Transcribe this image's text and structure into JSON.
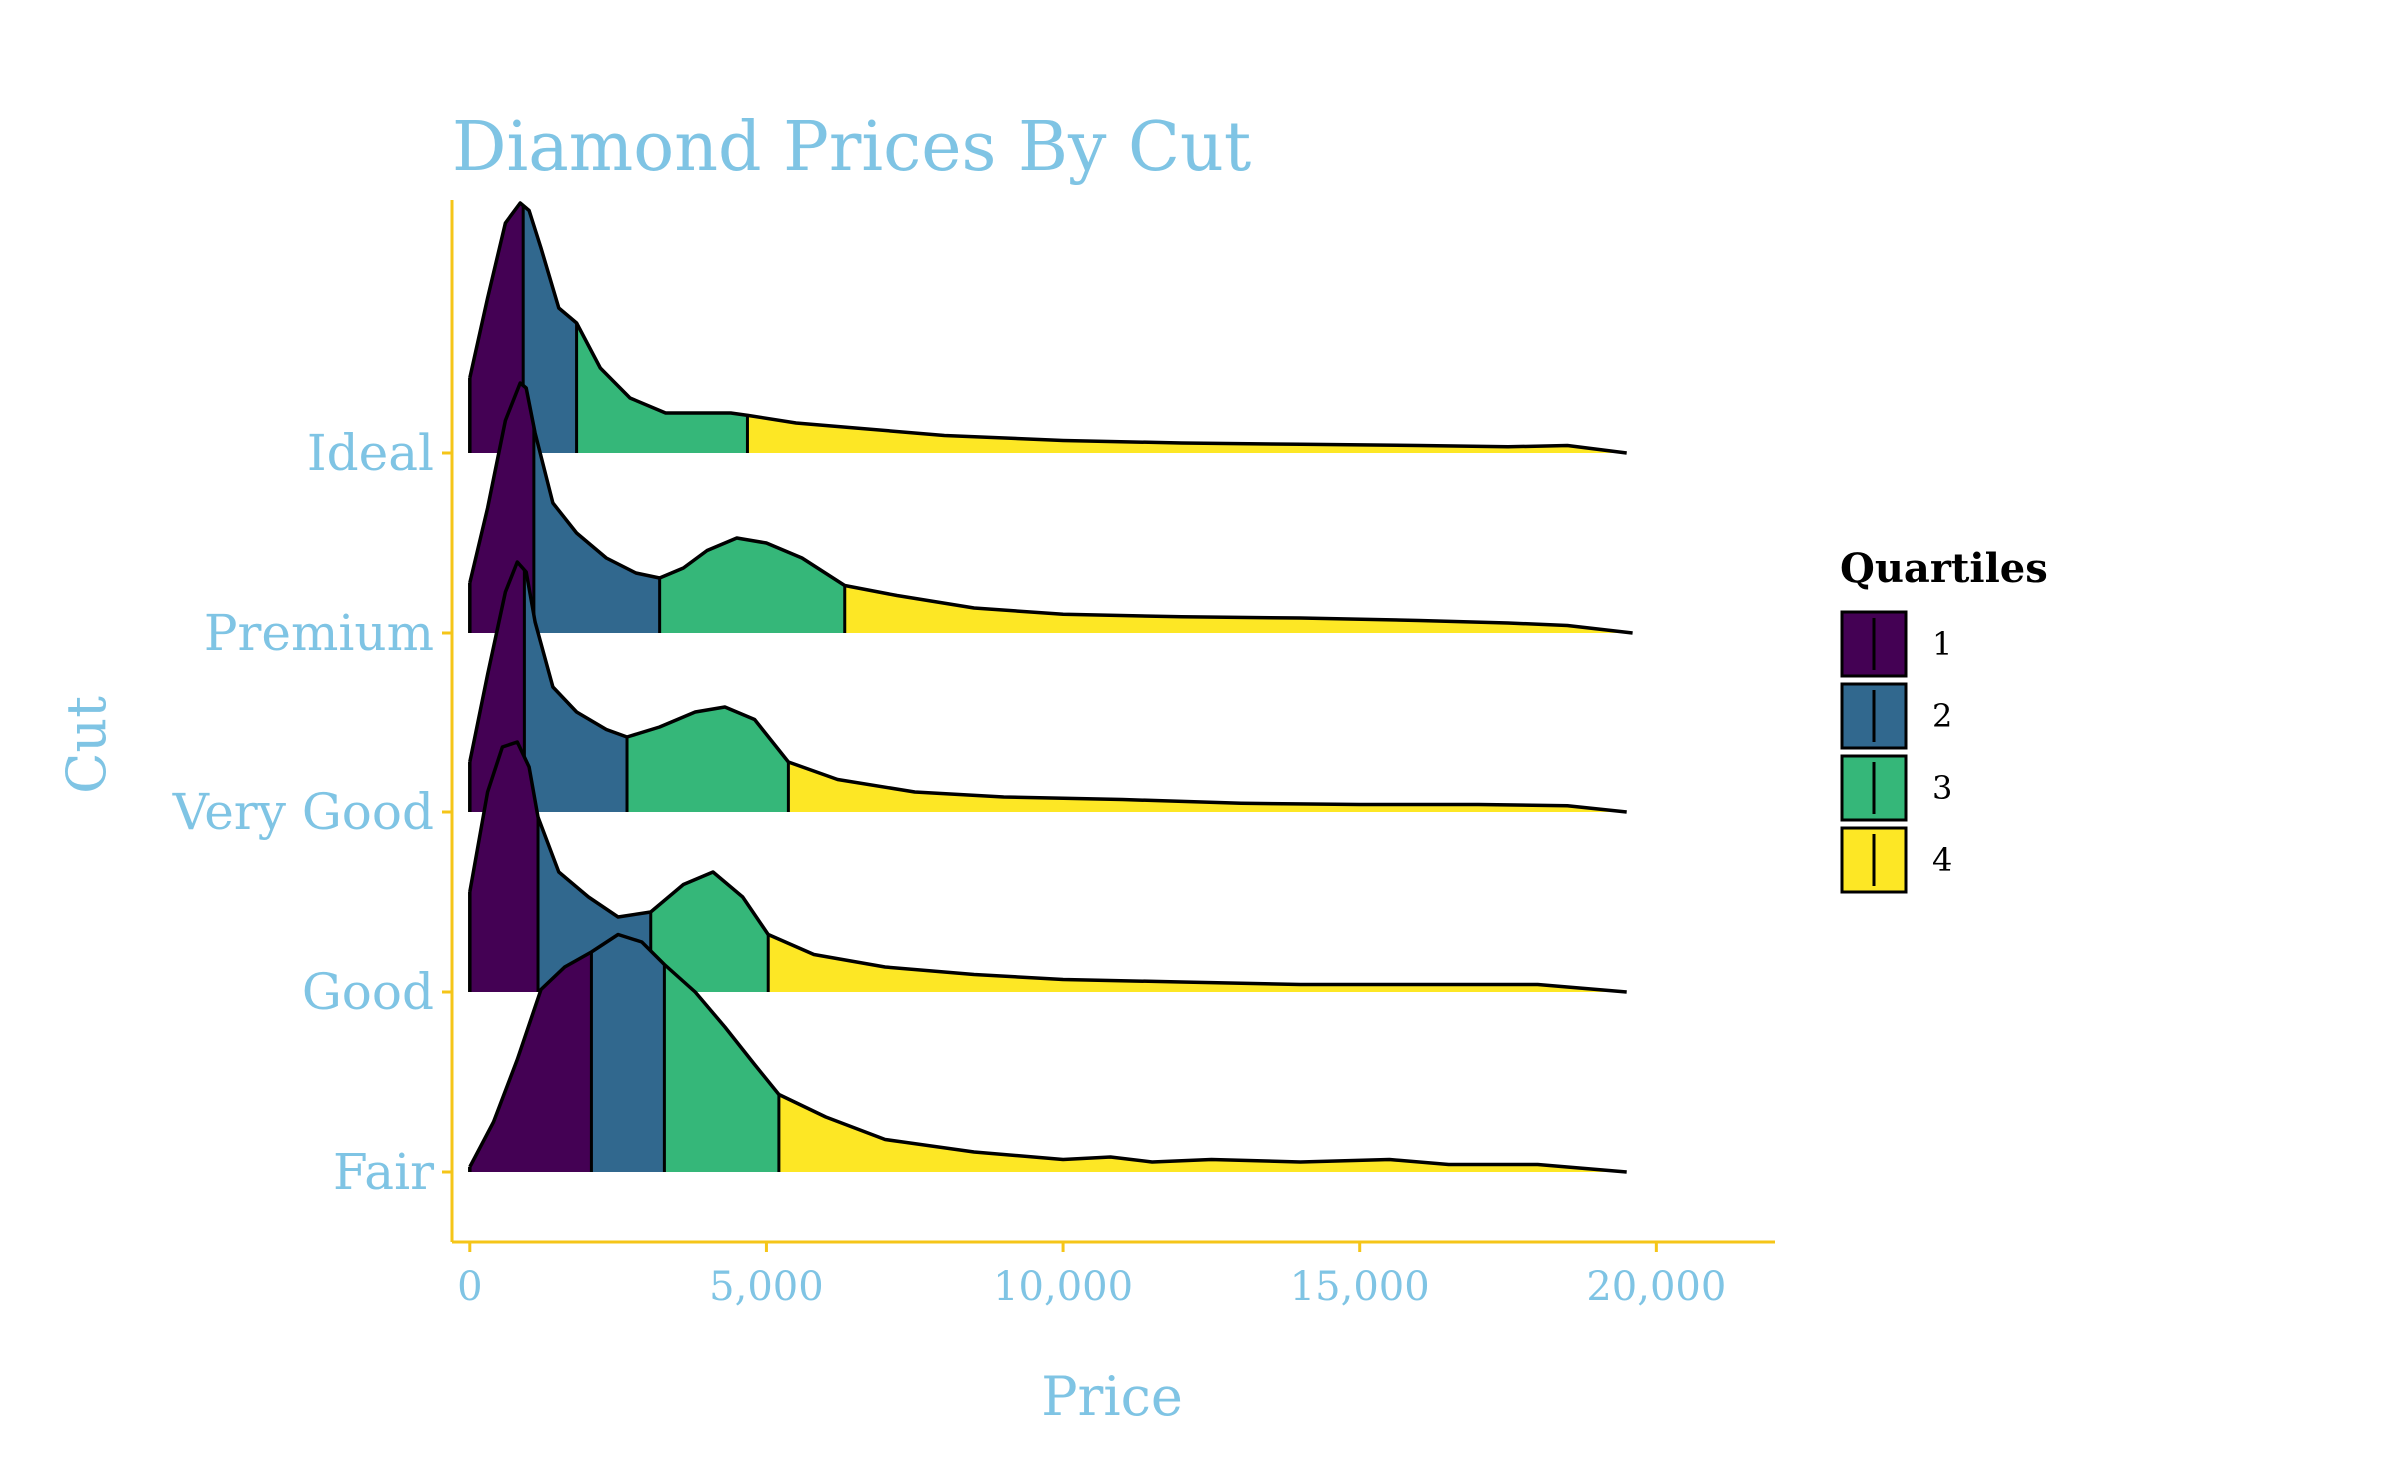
{
  "chart_data": {
    "type": "area",
    "subtype": "ridgeline-density-by-quartile",
    "title": "Diamond Prices By Cut",
    "xlabel": "Price",
    "ylabel": "Cut",
    "xlim": [
      -300,
      22000
    ],
    "x_ticks": [
      0,
      5000,
      10000,
      15000,
      20000
    ],
    "x_tick_labels": [
      "0",
      "5,000",
      "10,000",
      "15,000",
      "20,000"
    ],
    "grid": false,
    "legend": {
      "title": "Quartiles",
      "position": "right",
      "entries": [
        "1",
        "2",
        "3",
        "4"
      ]
    },
    "colors": {
      "text": "#7fc4e4",
      "axis": "#f5c518",
      "outline": "#000000",
      "quartiles": [
        "#440154",
        "#31688e",
        "#35b779",
        "#fde725"
      ]
    },
    "categories": [
      "Ideal",
      "Premium",
      "Very Good",
      "Good",
      "Fair"
    ],
    "series": [
      {
        "name": "Ideal",
        "quartile_breaks": [
          900,
          1800,
          4680
        ],
        "x": [
          0,
          300,
          600,
          850,
          1000,
          1200,
          1500,
          1800,
          2200,
          2700,
          3300,
          3900,
          4400,
          4700,
          5500,
          6500,
          8000,
          10000,
          12000,
          14000,
          16000,
          17500,
          18500,
          19500
        ],
        "density": [
          0.3,
          0.62,
          0.92,
          1.0,
          0.97,
          0.82,
          0.58,
          0.52,
          0.34,
          0.22,
          0.16,
          0.16,
          0.16,
          0.15,
          0.12,
          0.1,
          0.07,
          0.05,
          0.04,
          0.035,
          0.03,
          0.025,
          0.03,
          0.0
        ]
      },
      {
        "name": "Premium",
        "quartile_breaks": [
          1080,
          3200,
          6320
        ],
        "x": [
          0,
          300,
          600,
          850,
          950,
          1100,
          1400,
          1800,
          2300,
          2800,
          3200,
          3600,
          4000,
          4500,
          5000,
          5600,
          6320,
          7200,
          8500,
          10000,
          12000,
          14000,
          16000,
          17500,
          18500,
          19600
        ],
        "density": [
          0.2,
          0.5,
          0.85,
          1.0,
          0.98,
          0.8,
          0.52,
          0.4,
          0.3,
          0.24,
          0.22,
          0.26,
          0.33,
          0.38,
          0.36,
          0.3,
          0.19,
          0.15,
          0.1,
          0.075,
          0.065,
          0.06,
          0.05,
          0.04,
          0.03,
          0.0
        ]
      },
      {
        "name": "Very Good",
        "quartile_breaks": [
          920,
          2650,
          5370
        ],
        "x": [
          0,
          300,
          600,
          800,
          950,
          1100,
          1400,
          1800,
          2300,
          2650,
          3200,
          3800,
          4300,
          4800,
          5370,
          6200,
          7500,
          9000,
          11000,
          13000,
          15000,
          17000,
          18500,
          19500
        ],
        "density": [
          0.2,
          0.55,
          0.88,
          1.0,
          0.96,
          0.76,
          0.5,
          0.4,
          0.33,
          0.3,
          0.34,
          0.4,
          0.42,
          0.37,
          0.2,
          0.13,
          0.08,
          0.06,
          0.05,
          0.035,
          0.03,
          0.03,
          0.025,
          0.0
        ]
      },
      {
        "name": "Good",
        "quartile_breaks": [
          1150,
          3050,
          5030
        ],
        "x": [
          0,
          300,
          550,
          800,
          1000,
          1150,
          1500,
          2000,
          2500,
          3050,
          3600,
          4100,
          4600,
          5030,
          5800,
          7000,
          8500,
          10000,
          12000,
          14000,
          16000,
          18000,
          19500
        ],
        "density": [
          0.4,
          0.8,
          0.98,
          1.0,
          0.9,
          0.7,
          0.48,
          0.38,
          0.3,
          0.32,
          0.43,
          0.48,
          0.38,
          0.23,
          0.15,
          0.1,
          0.07,
          0.05,
          0.04,
          0.03,
          0.03,
          0.03,
          0.0
        ]
      },
      {
        "name": "Fair",
        "quartile_breaks": [
          2050,
          3280,
          5210
        ],
        "x": [
          0,
          400,
          800,
          1200,
          1600,
          2050,
          2500,
          2900,
          3280,
          3800,
          4300,
          4800,
          5210,
          6000,
          7000,
          8500,
          10000,
          10800,
          11500,
          12500,
          14000,
          15500,
          16500,
          18000,
          19500
        ],
        "density": [
          0.02,
          0.2,
          0.45,
          0.73,
          0.82,
          0.88,
          0.95,
          0.92,
          0.83,
          0.72,
          0.58,
          0.43,
          0.31,
          0.22,
          0.13,
          0.08,
          0.05,
          0.06,
          0.04,
          0.05,
          0.04,
          0.05,
          0.03,
          0.03,
          0.0
        ]
      }
    ]
  }
}
